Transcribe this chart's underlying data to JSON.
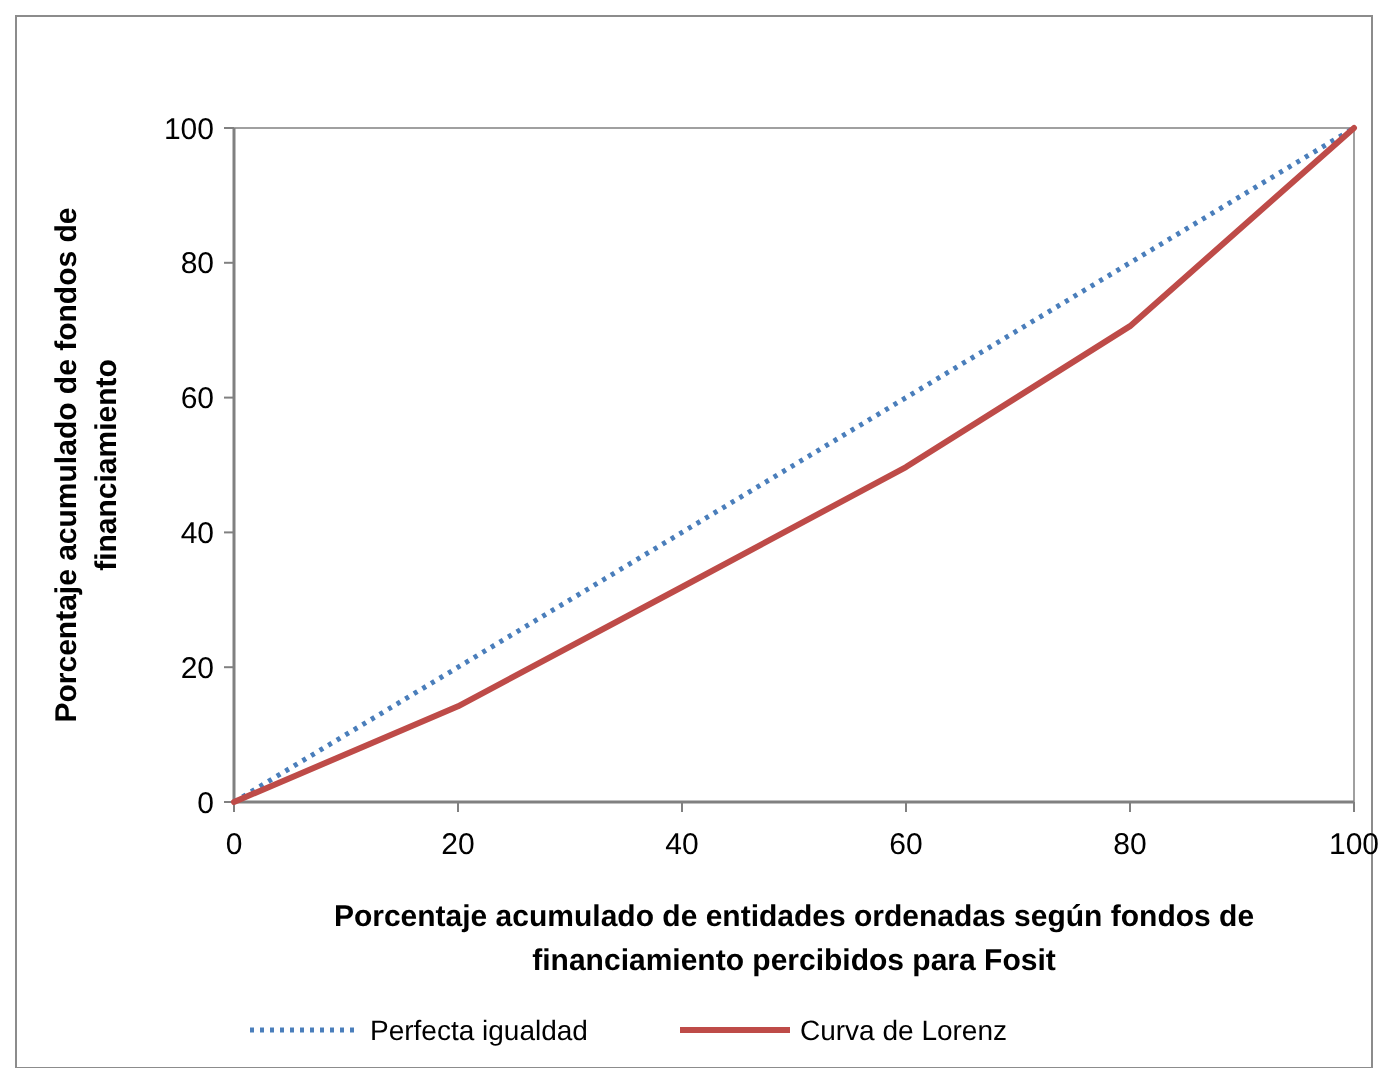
{
  "chart_data": {
    "type": "line",
    "xlabel": "Porcentaje acumulado de entidades ordenadas según fondos de financiamiento percibidos para Fosit",
    "ylabel": "Porcentaje  acumulado de fondos de financiamiento",
    "x": [
      0,
      20,
      40,
      60,
      80,
      100
    ],
    "series": [
      {
        "name": "Perfecta igualdad",
        "color": "#4a7ebb",
        "values": [
          0,
          20,
          40,
          60,
          80,
          100
        ],
        "line_style": "dotted"
      },
      {
        "name": "Curva de Lorenz",
        "color": "#be4b48",
        "values": [
          0,
          14.2,
          31.9,
          49.7,
          70.6,
          100
        ],
        "line_style": "solid"
      }
    ],
    "xlim": [
      0,
      100
    ],
    "ylim": [
      0,
      100
    ],
    "xticks": [
      0,
      20,
      40,
      60,
      80,
      100
    ],
    "yticks": [
      0,
      20,
      40,
      60,
      80,
      100
    ],
    "grid": false,
    "legend": "bottom",
    "marker": "none"
  }
}
